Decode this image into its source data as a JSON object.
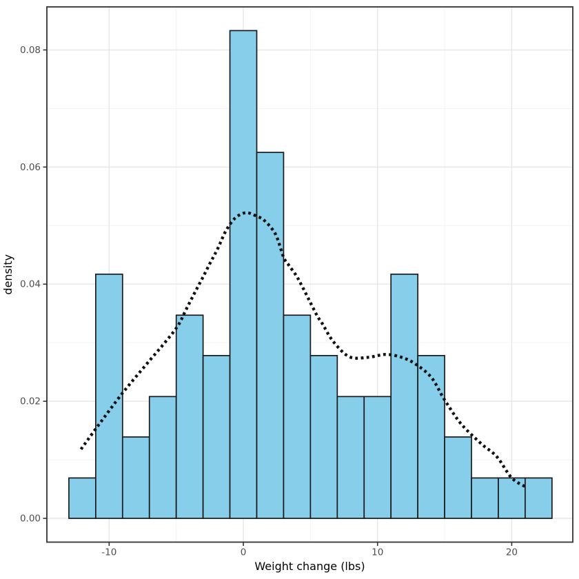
{
  "chart_data": {
    "type": "bar",
    "subtype": "histogram_with_density_overlay",
    "title": "",
    "xlabel": "Weight change (lbs)",
    "ylabel": "density",
    "legend": "none",
    "grid": "major+minor",
    "bin_width": 2,
    "bin_edges": [
      -13,
      -11,
      -9,
      -7,
      -5,
      -3,
      -1,
      1,
      3,
      5,
      7,
      9,
      11,
      13,
      15,
      17,
      19,
      21,
      23
    ],
    "densities": [
      0.0069,
      0.0417,
      0.0139,
      0.0208,
      0.0347,
      0.0278,
      0.0833,
      0.0625,
      0.0347,
      0.0278,
      0.0208,
      0.0208,
      0.0417,
      0.0278,
      0.0139,
      0.0069,
      0.0069,
      0.0069
    ],
    "approx_counts": [
      1,
      6,
      2,
      3,
      5,
      4,
      12,
      9,
      5,
      4,
      3,
      3,
      6,
      4,
      2,
      1,
      1,
      1
    ],
    "xlim": [
      -14.64,
      24.55
    ],
    "ylim": [
      -0.00406,
      0.08735
    ],
    "x_ticks": {
      "values": [
        -10,
        0,
        10,
        20
      ],
      "labels": [
        "-10",
        "0",
        "10",
        "20"
      ]
    },
    "y_ticks": {
      "values": [
        0,
        0.02,
        0.04,
        0.06,
        0.08
      ],
      "labels": [
        "0.00",
        "0.02",
        "0.04",
        "0.06",
        "0.08"
      ]
    },
    "x_minor_gridlines": [
      -5,
      5,
      15
    ],
    "y_minor_gridlines": [
      0.01,
      0.03,
      0.05,
      0.07
    ],
    "density_curve": {
      "style": "dotted",
      "points": [
        [
          -12.1,
          0.0118
        ],
        [
          -10.8,
          0.0159
        ],
        [
          -9.0,
          0.0214
        ],
        [
          -7.3,
          0.0261
        ],
        [
          -6.0,
          0.0296
        ],
        [
          -4.9,
          0.0328
        ],
        [
          -4.3,
          0.0355
        ],
        [
          -3.7,
          0.0382
        ],
        [
          -3.1,
          0.0408
        ],
        [
          -2.5,
          0.0435
        ],
        [
          -1.9,
          0.0461
        ],
        [
          -1.3,
          0.0491
        ],
        [
          -0.6,
          0.0513
        ],
        [
          0.2,
          0.0522
        ],
        [
          1.0,
          0.0516
        ],
        [
          1.6,
          0.0508
        ],
        [
          2.4,
          0.0485
        ],
        [
          3.0,
          0.0446
        ],
        [
          3.4,
          0.0432
        ],
        [
          3.9,
          0.0416
        ],
        [
          4.3,
          0.04
        ],
        [
          4.9,
          0.0373
        ],
        [
          5.5,
          0.0346
        ],
        [
          5.9,
          0.0332
        ],
        [
          6.7,
          0.0302
        ],
        [
          7.9,
          0.0276
        ],
        [
          9.3,
          0.0275
        ],
        [
          10.6,
          0.028
        ],
        [
          11.8,
          0.0275
        ],
        [
          12.8,
          0.0264
        ],
        [
          14.0,
          0.0241
        ],
        [
          14.9,
          0.0206
        ],
        [
          15.9,
          0.0171
        ],
        [
          16.6,
          0.0152
        ],
        [
          17.8,
          0.0126
        ],
        [
          18.9,
          0.0105
        ],
        [
          20.0,
          0.0069
        ],
        [
          21.1,
          0.0053
        ]
      ]
    },
    "colors": {
      "background": "#FFFFFF",
      "panel_background": "#FFFFFF",
      "panel_border": "#3C3C3C",
      "grid_major": "#E7E7E7",
      "grid_minor": "#F3F3F3",
      "bar_fill": "#87CEEB",
      "bar_stroke": "#1A1A1A",
      "curve": "#111111",
      "tick_mark": "#333333",
      "tick_label": "#4D4D4D",
      "axis_title": "#000000"
    }
  }
}
